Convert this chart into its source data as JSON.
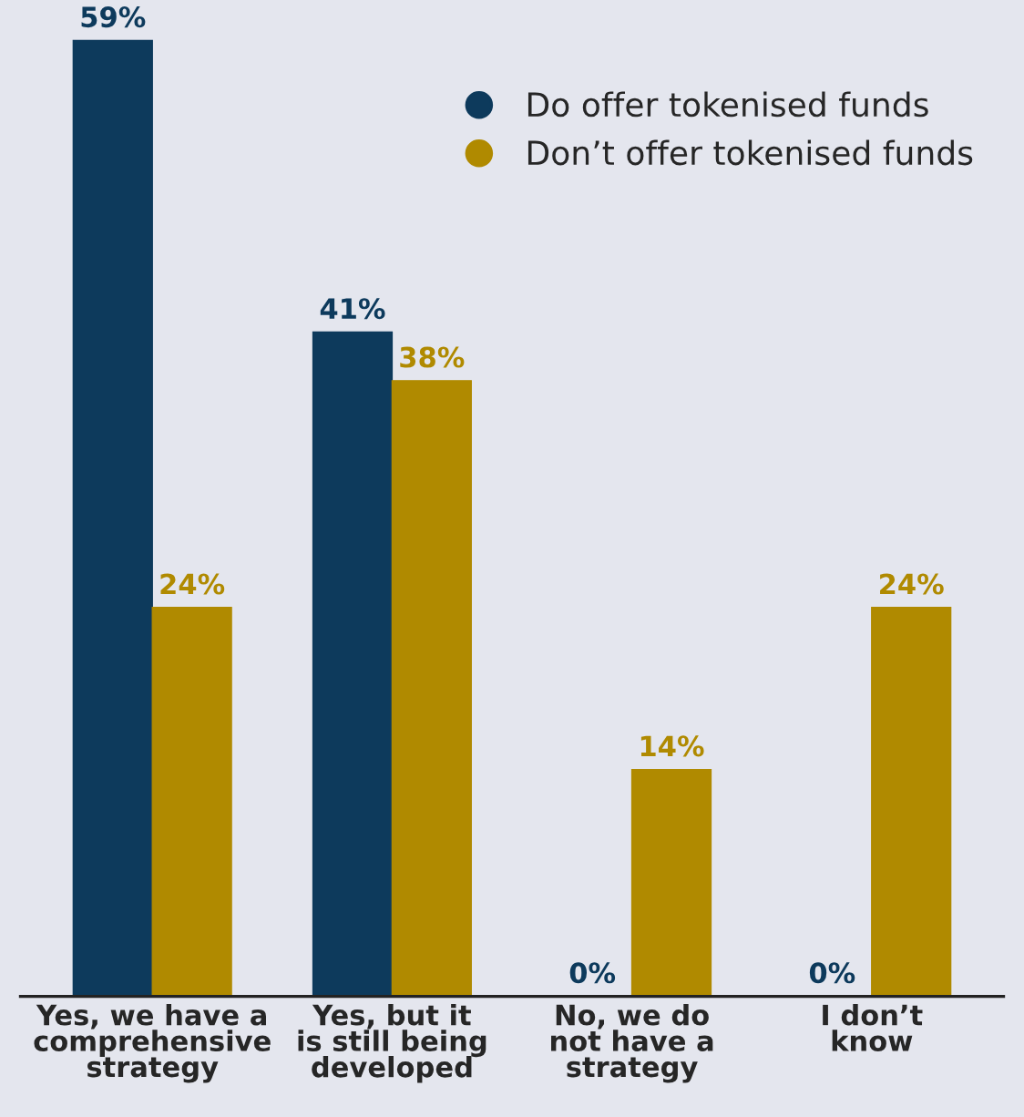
{
  "chart_data": {
    "type": "bar",
    "categories": [
      "Yes, we have a\ncomprehensive\nstrategy",
      "Yes, but it\nis still being\ndeveloped",
      "No, we do\nnot have a\nstrategy",
      "I don’t\nknow"
    ],
    "series": [
      {
        "name": "Do offer tokenised funds",
        "color": "#0d3a5c",
        "values": [
          59,
          41,
          0,
          0
        ],
        "value_labels": [
          "59%",
          "41%",
          "0%",
          "0%"
        ]
      },
      {
        "name": "Don’t offer tokenised funds",
        "color": "#b08a00",
        "values": [
          24,
          38,
          14,
          24
        ],
        "value_labels": [
          "24%",
          "38%",
          "14%",
          "24%"
        ]
      }
    ],
    "legend": "top right",
    "grid": false
  }
}
